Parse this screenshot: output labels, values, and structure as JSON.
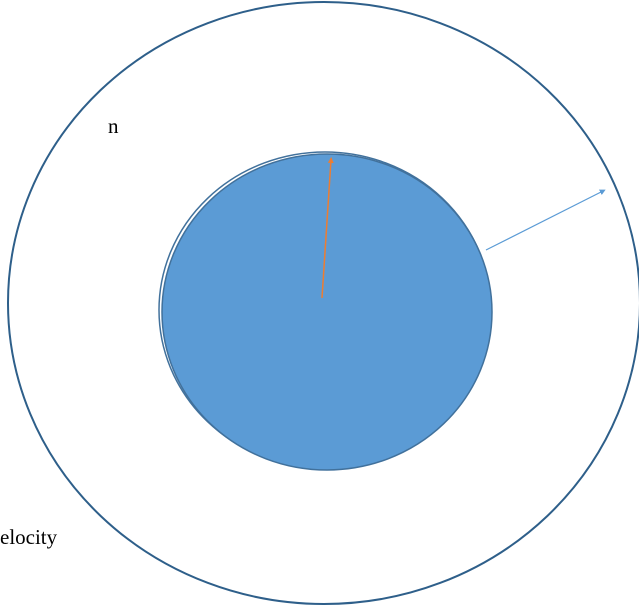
{
  "labels": {
    "top_fragment": "n",
    "bottom_fragment": "elocity"
  },
  "colors": {
    "outer_circle_stroke": "#2e5f8a",
    "inner_disk_fill": "#5b9bd5",
    "inner_disk_stroke": "#41719c",
    "radius_arrow": "#ed7d31",
    "velocity_arrow": "#5b9bd5",
    "background": "#ffffff"
  }
}
